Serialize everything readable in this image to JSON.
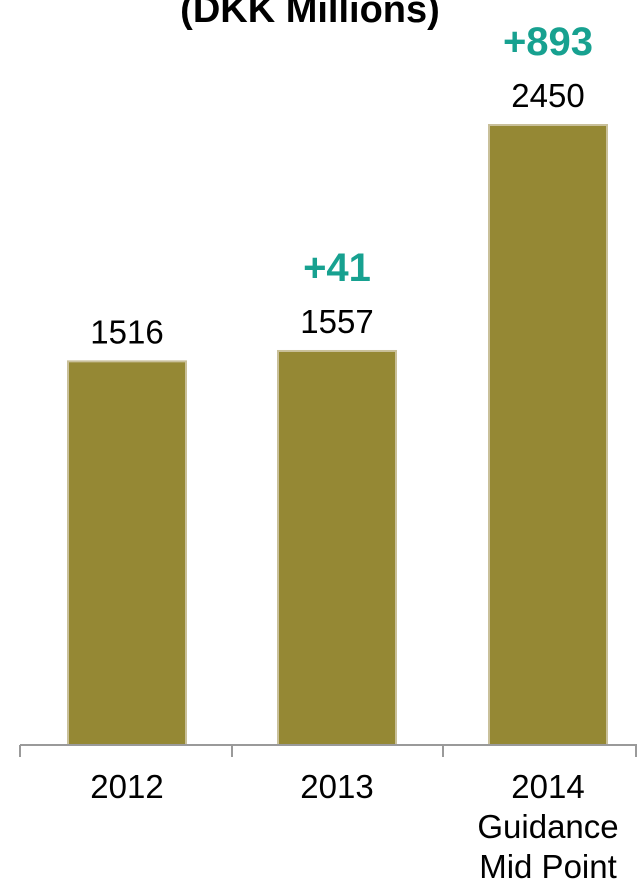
{
  "chart_data": {
    "type": "bar",
    "title": "(DKK Millions)",
    "categories": [
      [
        "2012"
      ],
      [
        "2013"
      ],
      [
        "2014",
        "Guidance",
        "Mid Point"
      ]
    ],
    "values": [
      1516,
      1557,
      2450
    ],
    "increments": [
      null,
      "+41",
      "+893"
    ],
    "ylim": [
      0,
      2450
    ],
    "grid": false,
    "colors": {
      "bar": "#958834",
      "bar_edge": "#c9c09a",
      "increment": "#17a190",
      "axis": "#9a9a9a"
    }
  }
}
